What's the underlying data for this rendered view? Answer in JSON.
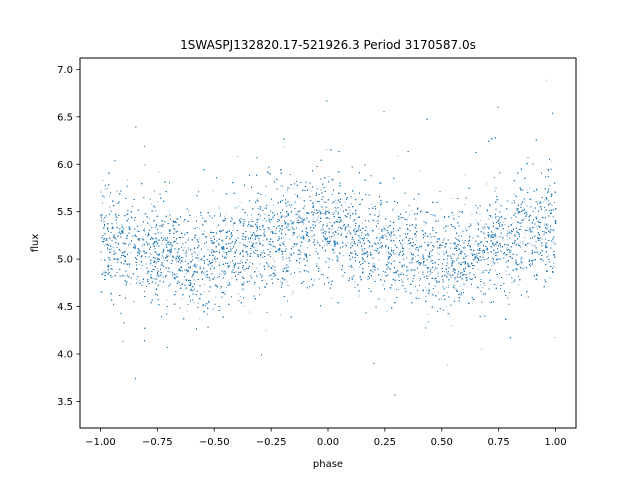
{
  "chart_data": {
    "type": "scatter",
    "title": "1SWASPJ132820.17-521926.3 Period 3170587.0s",
    "xlabel": "phase",
    "ylabel": "flux",
    "xlim": [
      -1.09,
      1.09
    ],
    "ylim": [
      3.22,
      7.12
    ],
    "xticks": [
      -1.0,
      -0.75,
      -0.5,
      -0.25,
      0.0,
      0.25,
      0.5,
      0.75,
      1.0
    ],
    "xtick_labels": [
      "−1.00",
      "−0.75",
      "−0.50",
      "−0.25",
      "0.00",
      "0.25",
      "0.50",
      "0.75",
      "1.00"
    ],
    "yticks": [
      3.5,
      4.0,
      4.5,
      5.0,
      5.5,
      6.0,
      6.5,
      7.0
    ],
    "ytick_labels": [
      "3.5",
      "4.0",
      "4.5",
      "5.0",
      "5.5",
      "6.0",
      "6.5",
      "7.0"
    ],
    "grid": false,
    "marker_color": "#1f77b4",
    "series": [
      {
        "points": "dense light-curve scatter (~24000 points) spanning phase -1.0 to 1.0; flux concentrated between 4.5 and 6.0, mean near 5.2",
        "profile": {
          "phase": [
            -1.0,
            -0.9,
            -0.8,
            -0.7,
            -0.6,
            -0.5,
            -0.4,
            -0.3,
            -0.2,
            -0.1,
            0.0,
            0.1,
            0.2,
            0.3,
            0.4,
            0.5,
            0.6,
            0.7,
            0.8,
            0.9,
            1.0
          ],
          "mean_flux": [
            5.25,
            5.15,
            5.12,
            5.08,
            5.0,
            5.02,
            5.1,
            5.2,
            5.28,
            5.3,
            5.4,
            5.2,
            5.15,
            5.1,
            5.05,
            5.0,
            5.0,
            5.15,
            5.22,
            5.28,
            5.35
          ],
          "spread": [
            0.3,
            0.28,
            0.27,
            0.26,
            0.26,
            0.26,
            0.27,
            0.28,
            0.27,
            0.28,
            0.32,
            0.28,
            0.27,
            0.26,
            0.26,
            0.26,
            0.26,
            0.27,
            0.27,
            0.29,
            0.32
          ]
        }
      }
    ]
  }
}
